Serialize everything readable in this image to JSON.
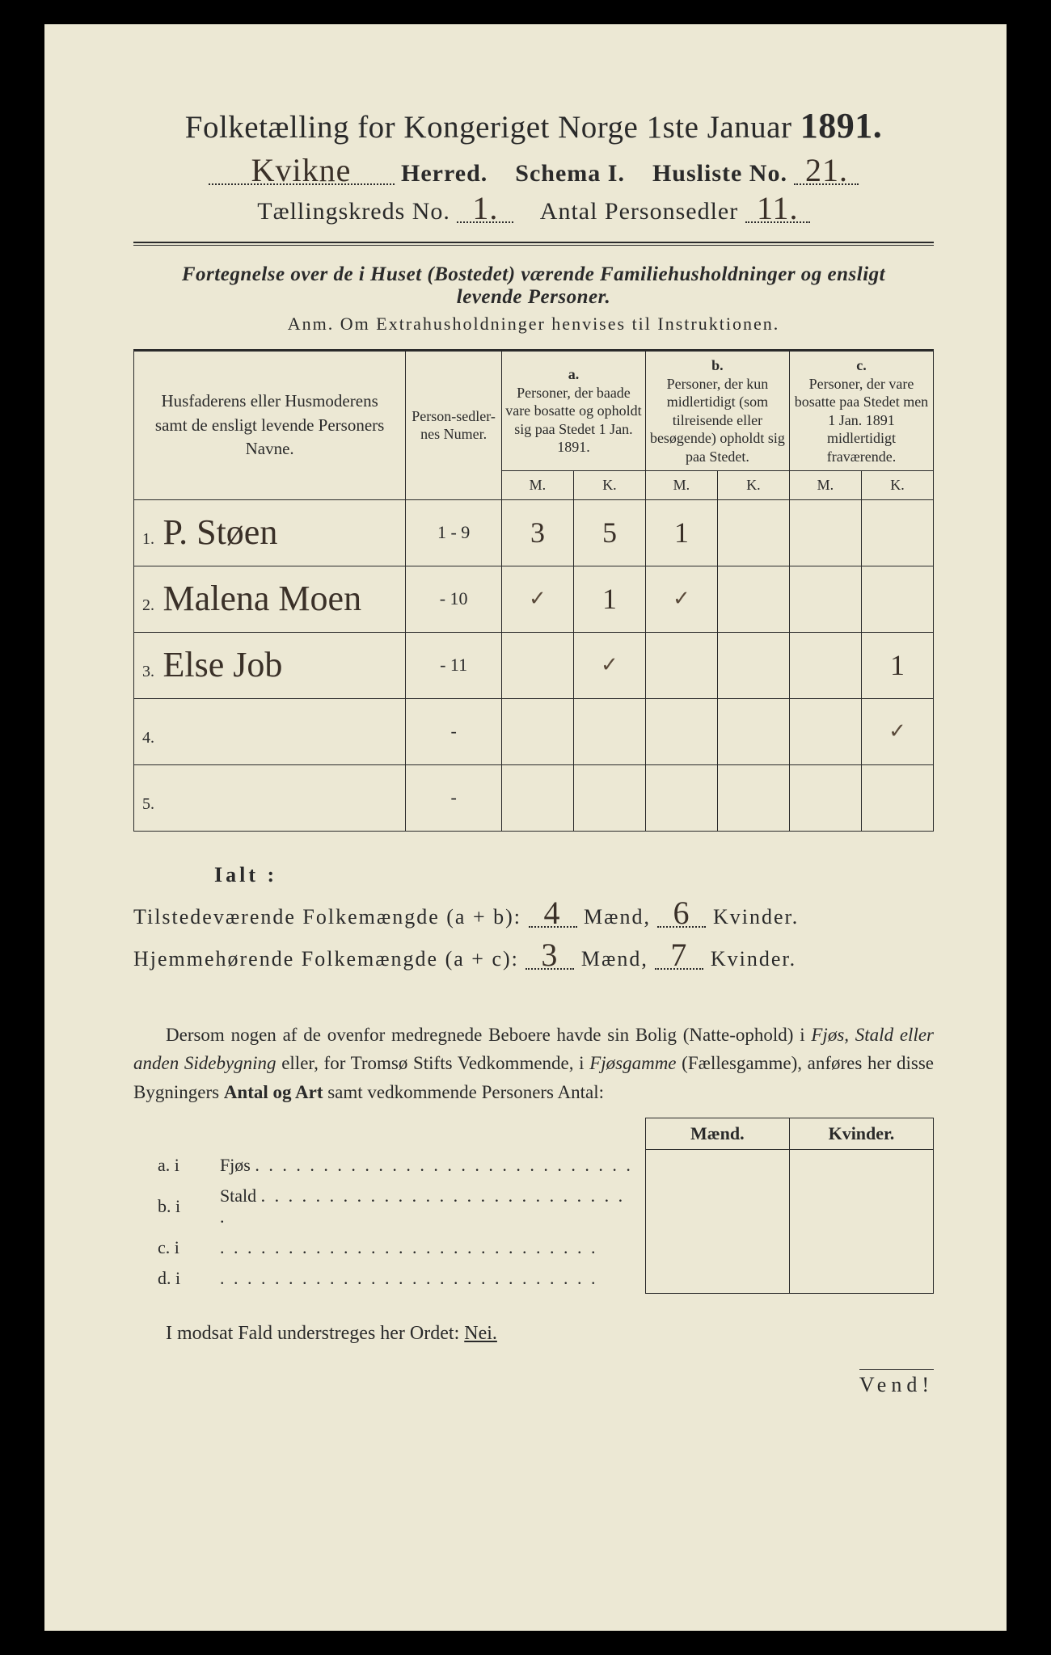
{
  "colors": {
    "paper": "#ece8d4",
    "ink": "#2a2a2a",
    "handwriting": "#3a3028",
    "frame": "#000000"
  },
  "typography": {
    "print_family": "Times New Roman / Georgia serif",
    "handwriting_family": "Brush Script / cursive",
    "title_size_pt": 39,
    "year_size_pt": 44,
    "line2_size_pt": 30,
    "subhead_size_pt": 25,
    "body_size_pt": 23,
    "table_header_size_pt": 18,
    "handwriting_size_pt": 44
  },
  "header": {
    "title_prefix": "Folketælling for Kongeriget Norge 1ste Januar",
    "year": "1891.",
    "herred_value": "Kvikne",
    "herred_label": "Herred.",
    "schema_label": "Schema I.",
    "husliste_label": "Husliste No.",
    "husliste_value": "21.",
    "kreds_label": "Tællingskreds No.",
    "kreds_value": "1.",
    "antal_label": "Antal Personsedler",
    "antal_value": "11."
  },
  "subhead": {
    "line1": "Fortegnelse over de i Huset (Bostedet) værende Familiehusholdninger og ensligt",
    "line2": "levende Personer.",
    "anm": "Anm.   Om Extrahusholdninger henvises til Instruktionen."
  },
  "table": {
    "col_names": "Husfaderens eller Husmoderens samt de ensligt levende Personers Navne.",
    "col_numer": "Person-sedler-nes Numer.",
    "col_a_label": "a.",
    "col_a_text": "Personer, der baade vare bosatte og opholdt sig paa Stedet 1 Jan. 1891.",
    "col_b_label": "b.",
    "col_b_text": "Personer, der kun midlertidigt (som tilreisende eller besøgende) opholdt sig paa Stedet.",
    "col_c_label": "c.",
    "col_c_text": "Personer, der vare bosatte paa Stedet men 1 Jan. 1891 midlertidigt fraværende.",
    "mk_m": "M.",
    "mk_k": "K.",
    "rows": [
      {
        "n": "1.",
        "name": "P. Støen",
        "numer": "1 - 9",
        "a_m": "3",
        "a_k": "5",
        "b_m": "1",
        "b_k": "",
        "c_m": "",
        "c_k": ""
      },
      {
        "n": "2.",
        "name": "Malena Moen",
        "numer": "- 10",
        "a_m": "✓",
        "a_k": "1",
        "b_m": "✓",
        "b_k": "",
        "c_m": "",
        "c_k": ""
      },
      {
        "n": "3.",
        "name": "Else  Job",
        "numer": "- 11",
        "a_m": "",
        "a_k": "✓",
        "b_m": "",
        "b_k": "",
        "c_m": "",
        "c_k": "1"
      },
      {
        "n": "4.",
        "name": "",
        "numer": "-",
        "a_m": "",
        "a_k": "",
        "b_m": "",
        "b_k": "",
        "c_m": "",
        "c_k": "✓"
      },
      {
        "n": "5.",
        "name": "",
        "numer": "-",
        "a_m": "",
        "a_k": "",
        "b_m": "",
        "b_k": "",
        "c_m": "",
        "c_k": ""
      }
    ]
  },
  "totals": {
    "ialt": "Ialt :",
    "line1_label": "Tilstedeværende Folkemængde (a + b):",
    "line1_m": "4",
    "line1_k": "6",
    "line2_label": "Hjemmehørende Folkemængde (a + c):",
    "line2_m": "3",
    "line2_k": "7",
    "maend": "Mænd,",
    "kvinder": "Kvinder."
  },
  "paragraph": {
    "text_1": "Dersom nogen af de ovenfor medregnede Beboere havde sin Bolig (Natte-ophold) i ",
    "text_2_i": "Fjøs, Stald eller anden Sidebygning",
    "text_3": " eller, for Tromsø Stifts Vedkommende, i ",
    "text_4_i": "Fjøsgamme",
    "text_5": " (Fællesgamme), anføres her disse Bygningers ",
    "text_6_b": "Antal og Art",
    "text_7": " samt vedkommende Personers Antal:"
  },
  "subtable": {
    "h_maend": "Mænd.",
    "h_kvinder": "Kvinder.",
    "rows": [
      {
        "k": "a.  i",
        "label": "Fjøs"
      },
      {
        "k": "b.  i",
        "label": "Stald"
      },
      {
        "k": "c.  i",
        "label": ""
      },
      {
        "k": "d.  i",
        "label": ""
      }
    ]
  },
  "footer": {
    "nei": "I modsat Fald understreges her Ordet: ",
    "nei_word": "Nei.",
    "vend": "Vend!"
  }
}
